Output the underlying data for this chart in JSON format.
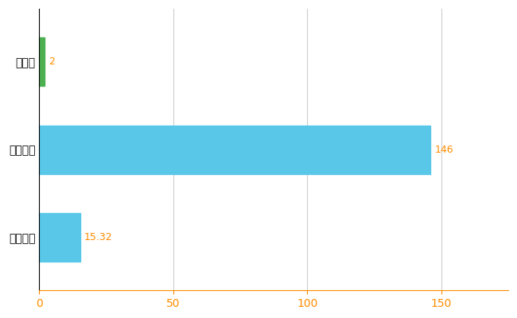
{
  "categories": [
    "全国平均",
    "全国最大",
    "栃木県"
  ],
  "values": [
    15.32,
    146,
    2
  ],
  "bar_colors": [
    "#58C7E8",
    "#58C7E8",
    "#4CAF50"
  ],
  "value_labels": [
    "15.32",
    "146",
    "2"
  ],
  "xlim": [
    0,
    175
  ],
  "xticks": [
    0,
    50,
    100,
    150
  ],
  "background_color": "#FFFFFF",
  "grid_color": "#CCCCCC",
  "label_color_orange": "#FF8C00",
  "tick_color_x": "#FF8C00",
  "tick_color_y": "#000000",
  "spine_bottom_color": "#FF8C00",
  "spine_left_color": "#000000",
  "bar_height": 0.55
}
